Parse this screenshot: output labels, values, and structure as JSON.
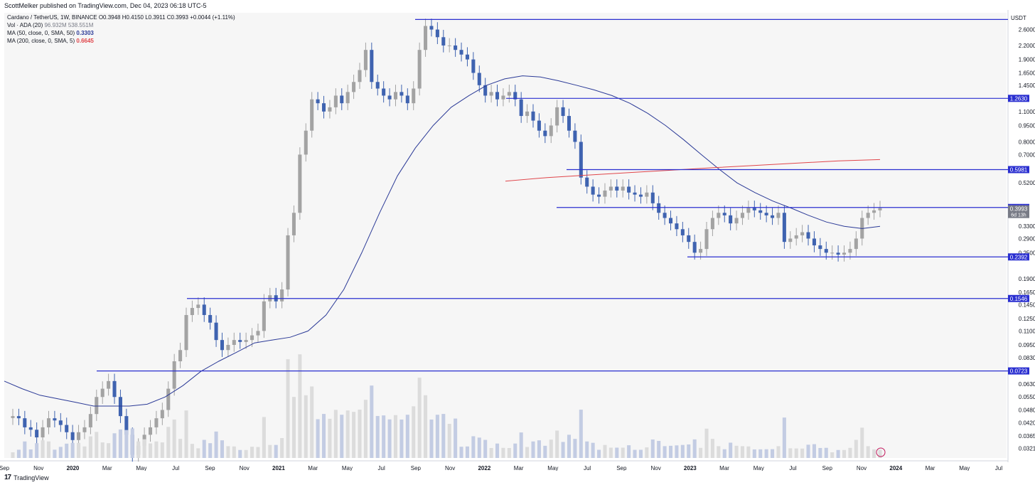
{
  "header": {
    "publisher": "ScottMelker published on TradingView.com, Dec 04, 2023 06:18 UTC-5"
  },
  "legend": {
    "symbol": "Cardano / TetherUS, 1W, BINANCE",
    "ohlc": "O0.3948 H0.4150 L0.3911 C0.3993 +0.0044 (+1.11%)",
    "vol_label": "Vol · ADA (20)",
    "vol_values": "96.932M  538.551M",
    "ma50_label": "MA (50, close, 0, SMA, 50)",
    "ma50_value": "0.3303",
    "ma200_label": "MA (200, close, 0, SMA, 5)",
    "ma200_value": "0.6645"
  },
  "footer": {
    "brand": "TradingView",
    "logo": "17"
  },
  "colors": {
    "up": "#a3a3a3",
    "down": "#3f63b0",
    "line": "#2a2fd0",
    "ma50": "#2b3a97",
    "ma200": "#e0454a",
    "label_bg": "#2a2fd0"
  },
  "chart_data": {
    "type": "line",
    "title": "",
    "y_unit": "USDT",
    "log_scale": true,
    "ylim": [
      0.029,
      3.1
    ],
    "y_ticks": [
      "2.6000",
      "2.2000",
      "1.9000",
      "1.6500",
      "1.4500",
      "1.1000",
      "0.9500",
      "0.8000",
      "0.7000",
      "0.5200",
      "0.3300",
      "0.2900",
      "0.2500",
      "0.1900",
      "0.1650",
      "0.1450",
      "0.1250",
      "0.1100",
      "0.0950",
      "0.0830",
      "0.0630",
      "0.0550",
      "0.0480",
      "0.0420",
      "0.0365",
      "0.0321"
    ],
    "x_labels": [
      "Sep",
      "Nov",
      "2020",
      "Mar",
      "May",
      "Jul",
      "Sep",
      "Nov",
      "2021",
      "Mar",
      "May",
      "Jul",
      "Sep",
      "Nov",
      "2022",
      "Mar",
      "May",
      "Jul",
      "Sep",
      "Nov",
      "2023",
      "Mar",
      "May",
      "Jul",
      "Sep",
      "Nov",
      "2024",
      "Mar",
      "May",
      "Jul"
    ],
    "series": [
      {
        "values": [
          0.045,
          0.044,
          0.04,
          0.039,
          0.036,
          0.04,
          0.044,
          0.043,
          0.041,
          0.038,
          0.035,
          0.038,
          0.04,
          0.046,
          0.055,
          0.06,
          0.065,
          0.055,
          0.045,
          0.037,
          0.03,
          0.033,
          0.037,
          0.04,
          0.044,
          0.048,
          0.06,
          0.08,
          0.09,
          0.13,
          0.14,
          0.145,
          0.13,
          0.12,
          0.1,
          0.09,
          0.095,
          0.1,
          0.098,
          0.1,
          0.105,
          0.11,
          0.15,
          0.16,
          0.15,
          0.17,
          0.3,
          0.38,
          0.7,
          0.9,
          1.25,
          1.2,
          1.1,
          1.15,
          1.3,
          1.2,
          1.35,
          1.5,
          1.7,
          2.1,
          1.5,
          1.4,
          1.3,
          1.25,
          1.35,
          1.3,
          1.2,
          1.4,
          2.1,
          2.7,
          2.6,
          2.4,
          2.2,
          2.2,
          2.1,
          2.0,
          1.9,
          1.65,
          1.45,
          1.3,
          1.35,
          1.25,
          1.3,
          1.35,
          1.25,
          1.05,
          1.1,
          1.0,
          0.9,
          0.85,
          0.95,
          1.15,
          1.05,
          0.9,
          0.8,
          0.55,
          0.5,
          0.46,
          0.45,
          0.48,
          0.5,
          0.48,
          0.5,
          0.47,
          0.46,
          0.45,
          0.47,
          0.42,
          0.38,
          0.36,
          0.34,
          0.32,
          0.3,
          0.28,
          0.25,
          0.26,
          0.32,
          0.36,
          0.38,
          0.37,
          0.34,
          0.36,
          0.38,
          0.4,
          0.39,
          0.38,
          0.37,
          0.36,
          0.38,
          0.28,
          0.29,
          0.3,
          0.31,
          0.29,
          0.27,
          0.26,
          0.25,
          0.25,
          0.245,
          0.25,
          0.26,
          0.29,
          0.36,
          0.38,
          0.39,
          0.399
        ]
      },
      {
        "name": "MA (50, close, 0, SMA, 50)",
        "values": [
          0.065,
          0.06,
          0.056,
          0.054,
          0.052,
          0.05,
          0.05,
          0.05,
          0.051,
          0.055,
          0.062,
          0.072,
          0.08,
          0.088,
          0.097,
          0.1,
          0.103,
          0.11,
          0.13,
          0.17,
          0.25,
          0.38,
          0.56,
          0.75,
          0.95,
          1.15,
          1.3,
          1.45,
          1.55,
          1.6,
          1.58,
          1.52,
          1.45,
          1.38,
          1.3,
          1.2,
          1.08,
          0.95,
          0.82,
          0.7,
          0.6,
          0.52,
          0.47,
          0.43,
          0.4,
          0.37,
          0.345,
          0.33,
          0.322,
          0.33
        ]
      },
      {
        "name": "MA (200, close, 0, SMA, 5)",
        "values": [
          0.53,
          0.55,
          0.565,
          0.58,
          0.595,
          0.61,
          0.625,
          0.64,
          0.655,
          0.6645
        ]
      }
    ],
    "volume": [],
    "levels": [
      {
        "value": 2.89,
        "label": ""
      },
      {
        "value": 1.263,
        "label": "1.2630"
      },
      {
        "value": 0.5981,
        "label": "0.5981"
      },
      {
        "value": 0.4019,
        "label": "0.4019"
      },
      {
        "value": 0.2392,
        "label": "0.2392"
      },
      {
        "value": 0.1546,
        "label": "0.1546"
      },
      {
        "value": 0.0723,
        "label": "0.0723"
      }
    ],
    "last_price": {
      "value": 0.3993,
      "label": "0.3993",
      "countdown": "6d 13h"
    },
    "grid": false,
    "legend": "top-left"
  }
}
